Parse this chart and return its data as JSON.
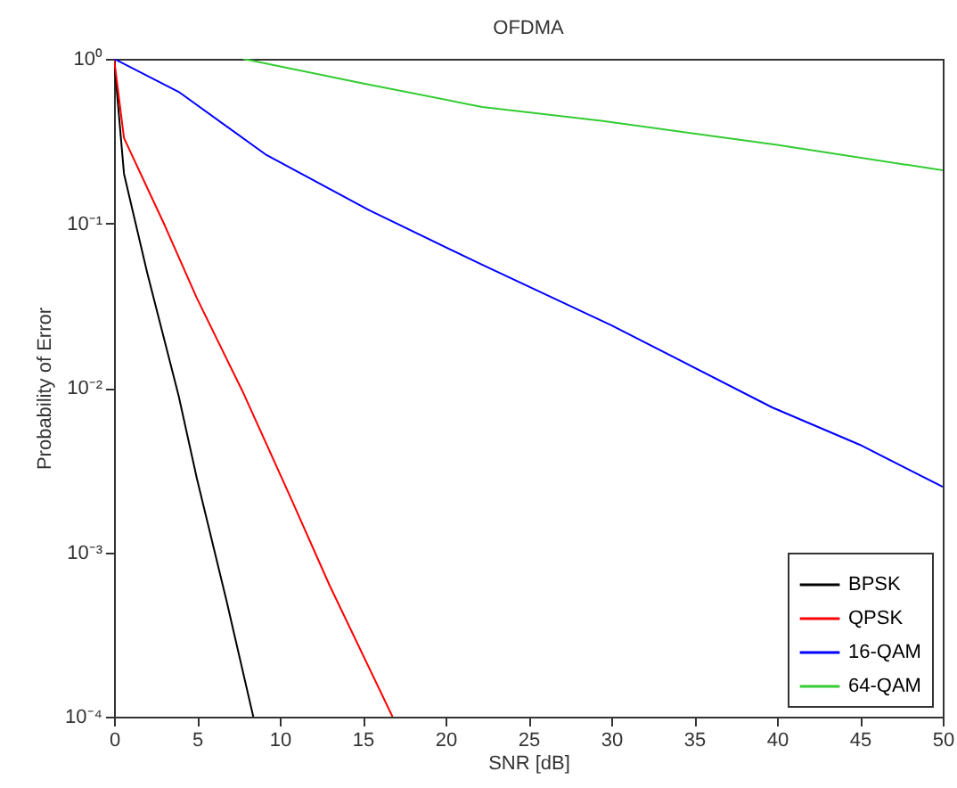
{
  "chart_data": {
    "type": "line",
    "title": "OFDMA",
    "xlabel": "SNR [dB]",
    "ylabel": "Probability of Error",
    "log": "y",
    "xlim": [
      0,
      50
    ],
    "xticks": [
      0,
      5,
      10,
      15,
      20,
      25,
      30,
      35,
      40,
      45,
      50
    ],
    "ylim": [
      0.0001,
      1
    ],
    "yticks": [
      {
        "value": 0.0001,
        "label": "10⁻⁴"
      },
      {
        "value": 0.001,
        "label": "10⁻³"
      },
      {
        "value": 0.01,
        "label": "10⁻²"
      },
      {
        "value": 0.1,
        "label": "10⁻¹"
      },
      {
        "value": 1,
        "label": "10⁰"
      }
    ],
    "legend": "bottom right",
    "grid": false,
    "marker": "none",
    "line_style": "solid",
    "series": [
      {
        "name": "BPSK",
        "color": "#000000",
        "x": [
          0,
          0.6,
          2,
          3.9,
          5,
          6.8,
          8.4
        ],
        "values": [
          1,
          0.2,
          0.05,
          0.0089,
          0.0028,
          0.0005,
          0.0001
        ]
      },
      {
        "name": "QPSK",
        "color": "#ff0000",
        "x": [
          0,
          0.6,
          3,
          5,
          7.8,
          10.7,
          13,
          16.8
        ],
        "values": [
          1,
          0.33,
          0.1,
          0.035,
          0.0093,
          0.0021,
          0.00063,
          0.0001
        ]
      },
      {
        "name": "16-QAM",
        "color": "#0000ff",
        "x": [
          0,
          3.9,
          9.2,
          15.4,
          22.2,
          30,
          39.7,
          45,
          50
        ],
        "values": [
          1,
          0.63,
          0.26,
          0.12,
          0.056,
          0.024,
          0.0076,
          0.0045,
          0.0025
        ]
      },
      {
        "name": "64-QAM",
        "color": "#33cc33",
        "x": [
          7.8,
          15,
          22.2,
          29.4,
          40,
          50
        ],
        "values": [
          1,
          0.71,
          0.51,
          0.42,
          0.3,
          0.21
        ]
      }
    ]
  }
}
